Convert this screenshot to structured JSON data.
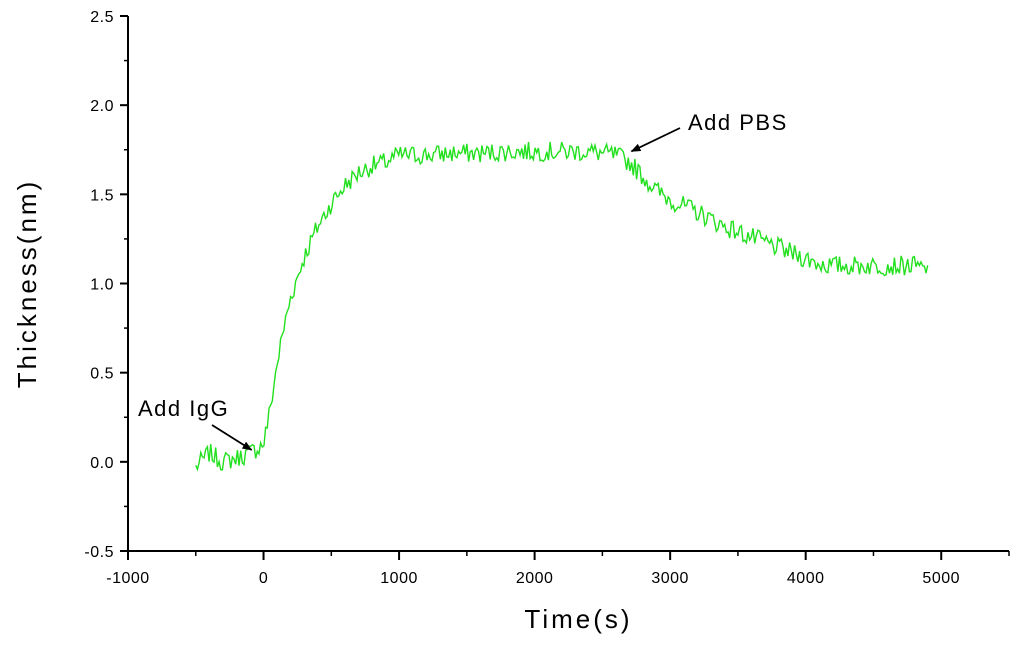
{
  "chart_data": {
    "type": "line",
    "title": "",
    "xlabel": "Time(s)",
    "ylabel": "Thickness(nm)",
    "xlim": [
      -1000,
      5500
    ],
    "ylim": [
      -0.5,
      2.5
    ],
    "xticks": [
      -1000,
      0,
      1000,
      2000,
      3000,
      4000,
      5000
    ],
    "xtick_labels": [
      "-1000",
      "0",
      "1000",
      "2000",
      "3000",
      "4000",
      "5000"
    ],
    "yticks": [
      -0.5,
      0.0,
      0.5,
      1.0,
      1.5,
      2.0,
      2.5
    ],
    "ytick_labels": [
      "-0.5",
      "0.0",
      "0.5",
      "1.0",
      "1.5",
      "2.0",
      "2.5"
    ],
    "grid": false,
    "line_color": "#22e01e",
    "series": [
      {
        "x": [
          -500,
          -400,
          -300,
          -200,
          -100,
          0,
          50,
          100,
          150,
          200,
          300,
          400,
          500,
          600,
          700,
          800,
          900,
          1000,
          1100,
          1200,
          1400,
          1600,
          1800,
          2000,
          2200,
          2400,
          2600,
          2700,
          2800,
          2900,
          3000,
          3200,
          3400,
          3600,
          3800,
          4000,
          4100,
          4200,
          4400,
          4600,
          4800,
          4900
        ],
        "y": [
          -0.03,
          0.05,
          0.0,
          0.02,
          0.05,
          0.1,
          0.3,
          0.55,
          0.75,
          0.92,
          1.15,
          1.32,
          1.45,
          1.55,
          1.62,
          1.66,
          1.68,
          1.72,
          1.72,
          1.72,
          1.73,
          1.73,
          1.74,
          1.74,
          1.74,
          1.74,
          1.72,
          1.68,
          1.6,
          1.52,
          1.47,
          1.4,
          1.32,
          1.26,
          1.2,
          1.14,
          1.11,
          1.1,
          1.1,
          1.1,
          1.1,
          1.07
        ]
      }
    ],
    "annotations": [
      {
        "text": "Add IgG",
        "x": 0,
        "y": 0.05
      },
      {
        "text": "Add PBS",
        "x": 2700,
        "y": 1.73
      }
    ]
  }
}
